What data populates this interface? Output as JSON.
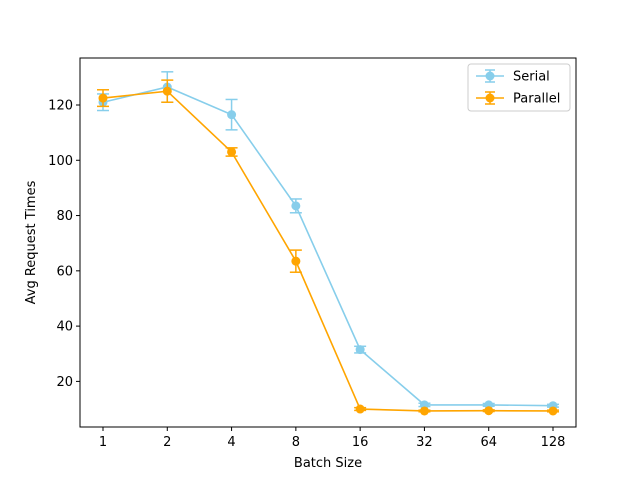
{
  "chart_data": {
    "type": "line",
    "title": "",
    "xlabel": "Batch Size",
    "ylabel": "Avg Request Times",
    "categories": [
      "1",
      "2",
      "4",
      "8",
      "16",
      "32",
      "64",
      "128"
    ],
    "ylim": [
      3.5,
      137
    ],
    "yticks": [
      20,
      40,
      60,
      80,
      100,
      120
    ],
    "grid": false,
    "legend_position": "top-right",
    "series": [
      {
        "name": "Serial",
        "color": "#87ceeb",
        "values": [
          121.0,
          126.5,
          116.5,
          83.5,
          31.5,
          11.5,
          11.5,
          11.2
        ],
        "errors": [
          3.0,
          5.5,
          5.5,
          2.5,
          1.2,
          0.6,
          0.5,
          0.5
        ]
      },
      {
        "name": "Parallel",
        "color": "#ffa500",
        "values": [
          122.5,
          125.0,
          103.0,
          63.5,
          10.0,
          9.3,
          9.4,
          9.3
        ],
        "errors": [
          3.0,
          4.0,
          1.5,
          4.0,
          0.5,
          0.3,
          0.3,
          0.3
        ]
      }
    ]
  }
}
